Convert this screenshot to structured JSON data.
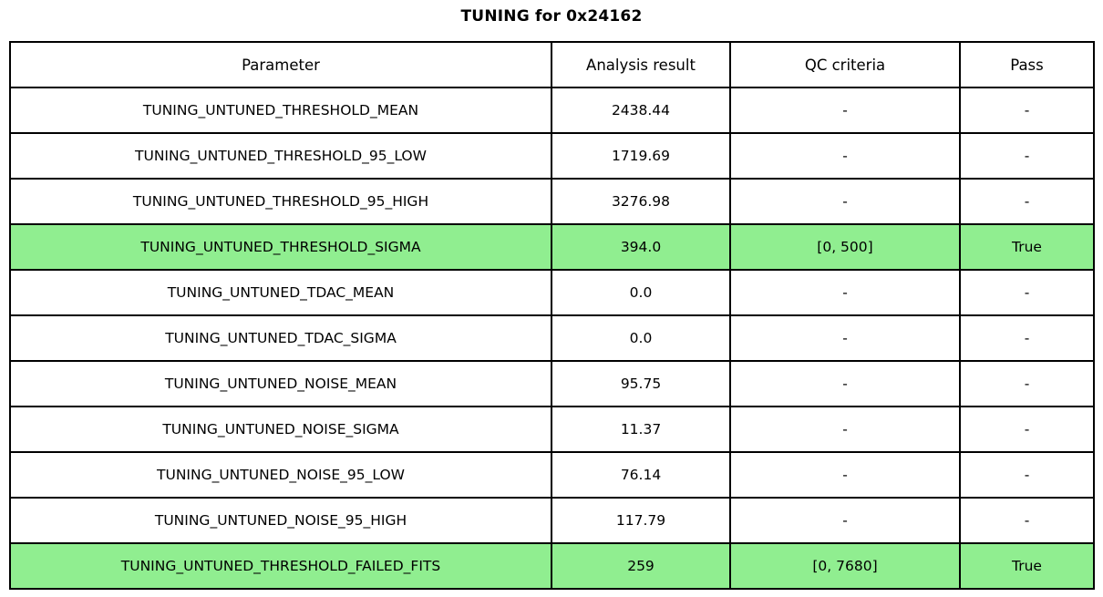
{
  "title": "TUNING for 0x24162",
  "colors": {
    "highlight_green": "#90EE90",
    "border": "#000000",
    "background": "#ffffff",
    "text": "#000000"
  },
  "chart_data": {
    "type": "table",
    "title": "TUNING for 0x24162",
    "columns": [
      "Parameter",
      "Analysis result",
      "QC criteria",
      "Pass"
    ],
    "rows": [
      {
        "parameter": "TUNING_UNTUNED_THRESHOLD_MEAN",
        "analysis_result": "2438.44",
        "qc_criteria": "-",
        "pass": "-",
        "highlight": false
      },
      {
        "parameter": "TUNING_UNTUNED_THRESHOLD_95_LOW",
        "analysis_result": "1719.69",
        "qc_criteria": "-",
        "pass": "-",
        "highlight": false
      },
      {
        "parameter": "TUNING_UNTUNED_THRESHOLD_95_HIGH",
        "analysis_result": "3276.98",
        "qc_criteria": "-",
        "pass": "-",
        "highlight": false
      },
      {
        "parameter": "TUNING_UNTUNED_THRESHOLD_SIGMA",
        "analysis_result": "394.0",
        "qc_criteria": "[0, 500]",
        "pass": "True",
        "highlight": true
      },
      {
        "parameter": "TUNING_UNTUNED_TDAC_MEAN",
        "analysis_result": "0.0",
        "qc_criteria": "-",
        "pass": "-",
        "highlight": false
      },
      {
        "parameter": "TUNING_UNTUNED_TDAC_SIGMA",
        "analysis_result": "0.0",
        "qc_criteria": "-",
        "pass": "-",
        "highlight": false
      },
      {
        "parameter": "TUNING_UNTUNED_NOISE_MEAN",
        "analysis_result": "95.75",
        "qc_criteria": "-",
        "pass": "-",
        "highlight": false
      },
      {
        "parameter": "TUNING_UNTUNED_NOISE_SIGMA",
        "analysis_result": "11.37",
        "qc_criteria": "-",
        "pass": "-",
        "highlight": false
      },
      {
        "parameter": "TUNING_UNTUNED_NOISE_95_LOW",
        "analysis_result": "76.14",
        "qc_criteria": "-",
        "pass": "-",
        "highlight": false
      },
      {
        "parameter": "TUNING_UNTUNED_NOISE_95_HIGH",
        "analysis_result": "117.79",
        "qc_criteria": "-",
        "pass": "-",
        "highlight": false
      },
      {
        "parameter": "TUNING_UNTUNED_THRESHOLD_FAILED_FITS",
        "analysis_result": "259",
        "qc_criteria": "[0, 7680]",
        "pass": "True",
        "highlight": true
      }
    ]
  }
}
